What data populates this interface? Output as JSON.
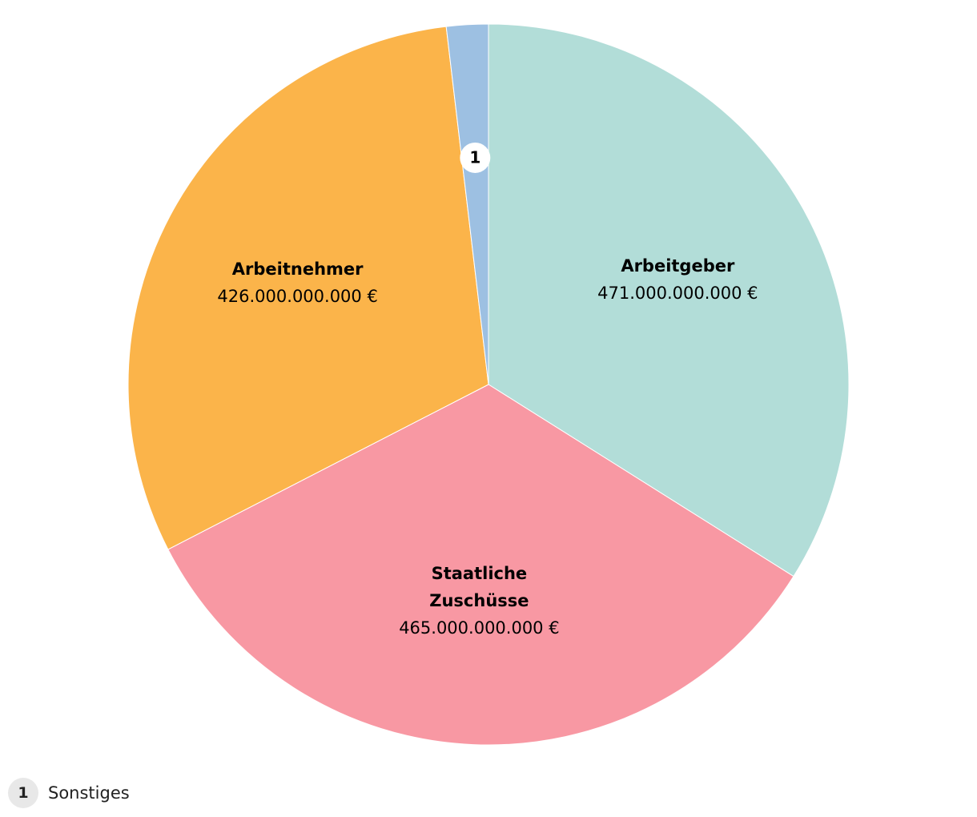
{
  "chart_data": {
    "type": "pie",
    "categories": [
      "Arbeitgeber",
      "Staatliche Zuschüsse",
      "Arbeitnehmer",
      "Sonstiges"
    ],
    "values": [
      471000000000,
      465000000000,
      426000000000,
      26000000000
    ],
    "value_labels": [
      "471.000.000.000 €",
      "465.000.000.000 €",
      "426.000.000.000 €",
      null
    ],
    "colors": [
      "#b2ddd8",
      "#f898a3",
      "#fbb44a",
      "#9dc0e2"
    ],
    "footnote_markers": [
      null,
      null,
      null,
      "1"
    ]
  }
}
